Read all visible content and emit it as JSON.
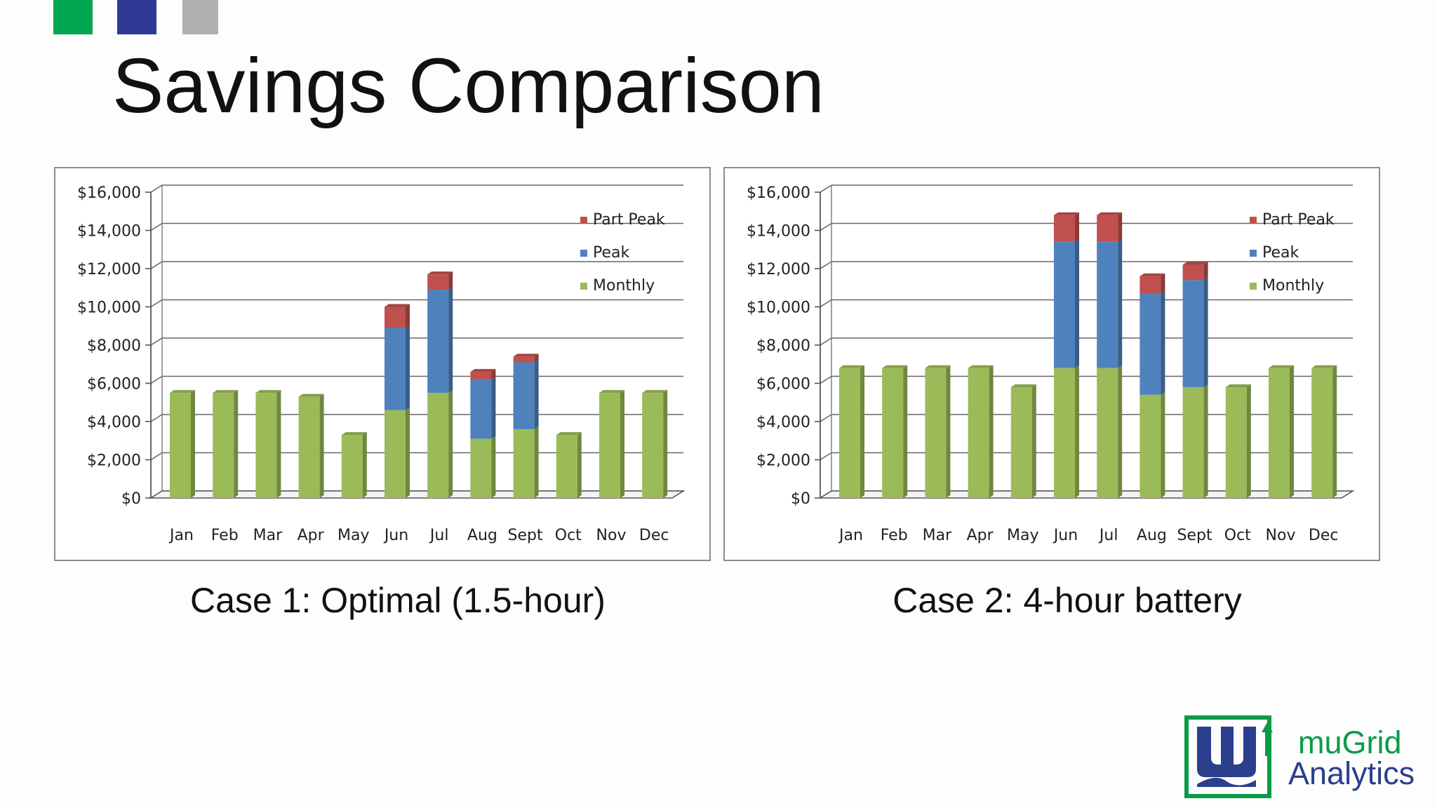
{
  "header": {
    "title": "Savings Comparison",
    "accent_squares": [
      "#00a651",
      "#2e3a94",
      "#b0b0b0"
    ]
  },
  "colors": {
    "monthly": "#9bbb59",
    "peak": "#4f81bd",
    "part_peak": "#c0504d",
    "brand_green": "#0a9b48",
    "brand_blue": "#2c3f8d"
  },
  "chart_data": [
    {
      "type": "bar",
      "stacked": true,
      "title": "",
      "caption": "Case 1: Optimal (1.5-hour)",
      "categories": [
        "Jan",
        "Feb",
        "Mar",
        "Apr",
        "May",
        "Jun",
        "Jul",
        "Aug",
        "Sept",
        "Oct",
        "Nov",
        "Dec"
      ],
      "series": [
        {
          "name": "Monthly",
          "color": "#9bbb59",
          "values": [
            5500,
            5500,
            5500,
            5300,
            3300,
            4600,
            5500,
            3100,
            3600,
            3300,
            5500,
            5500
          ]
        },
        {
          "name": "Peak",
          "color": "#4f81bd",
          "values": [
            0,
            0,
            0,
            0,
            0,
            4300,
            5400,
            3100,
            3500,
            0,
            0,
            0
          ]
        },
        {
          "name": "Part Peak",
          "color": "#c0504d",
          "values": [
            0,
            0,
            0,
            0,
            0,
            1100,
            800,
            400,
            300,
            0,
            0,
            0
          ]
        }
      ],
      "ylim": [
        0,
        16000
      ],
      "yticks": [
        "$0",
        "$2,000",
        "$4,000",
        "$6,000",
        "$8,000",
        "$10,000",
        "$12,000",
        "$14,000",
        "$16,000"
      ],
      "legend": [
        "Part Peak",
        "Peak",
        "Monthly"
      ],
      "legend_position": "top-right",
      "grid": true,
      "xlabel": "",
      "ylabel": ""
    },
    {
      "type": "bar",
      "stacked": true,
      "title": "",
      "caption": "Case 2: 4-hour battery",
      "categories": [
        "Jan",
        "Feb",
        "Mar",
        "Apr",
        "May",
        "Jun",
        "Jul",
        "Aug",
        "Sept",
        "Oct",
        "Nov",
        "Dec"
      ],
      "series": [
        {
          "name": "Monthly",
          "color": "#9bbb59",
          "values": [
            6800,
            6800,
            6800,
            6800,
            5800,
            6800,
            6800,
            5400,
            5800,
            5800,
            6800,
            6800
          ]
        },
        {
          "name": "Peak",
          "color": "#4f81bd",
          "values": [
            0,
            0,
            0,
            0,
            0,
            6600,
            6600,
            5300,
            5600,
            0,
            0,
            0
          ]
        },
        {
          "name": "Part Peak",
          "color": "#c0504d",
          "values": [
            0,
            0,
            0,
            0,
            0,
            1400,
            1400,
            900,
            800,
            0,
            0,
            0
          ]
        }
      ],
      "ylim": [
        0,
        16000
      ],
      "yticks": [
        "$0",
        "$2,000",
        "$4,000",
        "$6,000",
        "$8,000",
        "$10,000",
        "$12,000",
        "$14,000",
        "$16,000"
      ],
      "legend": [
        "Part Peak",
        "Peak",
        "Monthly"
      ],
      "legend_position": "top-right",
      "grid": true,
      "xlabel": "",
      "ylabel": ""
    }
  ],
  "brand": {
    "line1": "muGrid",
    "line2": "Analytics"
  }
}
